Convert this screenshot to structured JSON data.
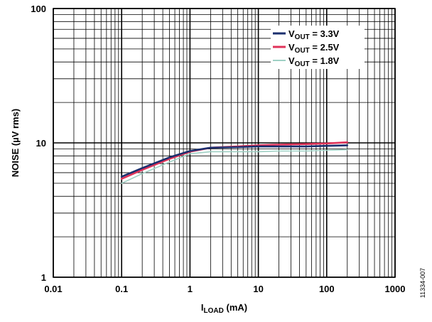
{
  "chart_data": {
    "type": "line",
    "xscale": "log",
    "yscale": "log",
    "xlim": [
      0.01,
      1000
    ],
    "ylim": [
      1,
      100
    ],
    "grid": true,
    "x_ticks": [
      "0.01",
      "0.1",
      "1",
      "10",
      "100",
      "1000"
    ],
    "y_ticks": [
      "1",
      "10",
      "100"
    ],
    "xlabel": {
      "main": "I",
      "sub": "LOAD",
      "tail": " (mA)"
    },
    "ylabel": "NOISE (µV rms)",
    "legend_position": "top-right",
    "figure_id": "11334-007",
    "series": [
      {
        "name": {
          "main": "V",
          "sub": "OUT",
          "tail": " = 3.3V"
        },
        "color": "#1b2f6e",
        "x": [
          0.1,
          0.2,
          0.5,
          1,
          2,
          5,
          10,
          20,
          50,
          100,
          200
        ],
        "y": [
          5.6,
          6.5,
          7.8,
          8.7,
          9.2,
          9.3,
          9.4,
          9.4,
          9.4,
          9.5,
          9.6
        ]
      },
      {
        "name": {
          "main": "V",
          "sub": "OUT",
          "tail": " = 2.5V"
        },
        "color": "#e0335a",
        "x": [
          0.1,
          0.2,
          0.5,
          1,
          2,
          5,
          10,
          20,
          50,
          100,
          200
        ],
        "y": [
          5.4,
          6.3,
          7.6,
          8.6,
          9.2,
          9.4,
          9.6,
          9.7,
          9.8,
          9.9,
          10.1
        ]
      },
      {
        "name": {
          "main": "V",
          "sub": "OUT",
          "tail": " = 1.8V"
        },
        "color": "#9fd0c4",
        "x": [
          0.1,
          0.2,
          0.5,
          1,
          2,
          5,
          10,
          20,
          50,
          100,
          200
        ],
        "y": [
          5.0,
          5.9,
          7.2,
          8.3,
          8.6,
          8.6,
          8.6,
          8.7,
          8.7,
          8.8,
          8.9
        ]
      }
    ]
  }
}
